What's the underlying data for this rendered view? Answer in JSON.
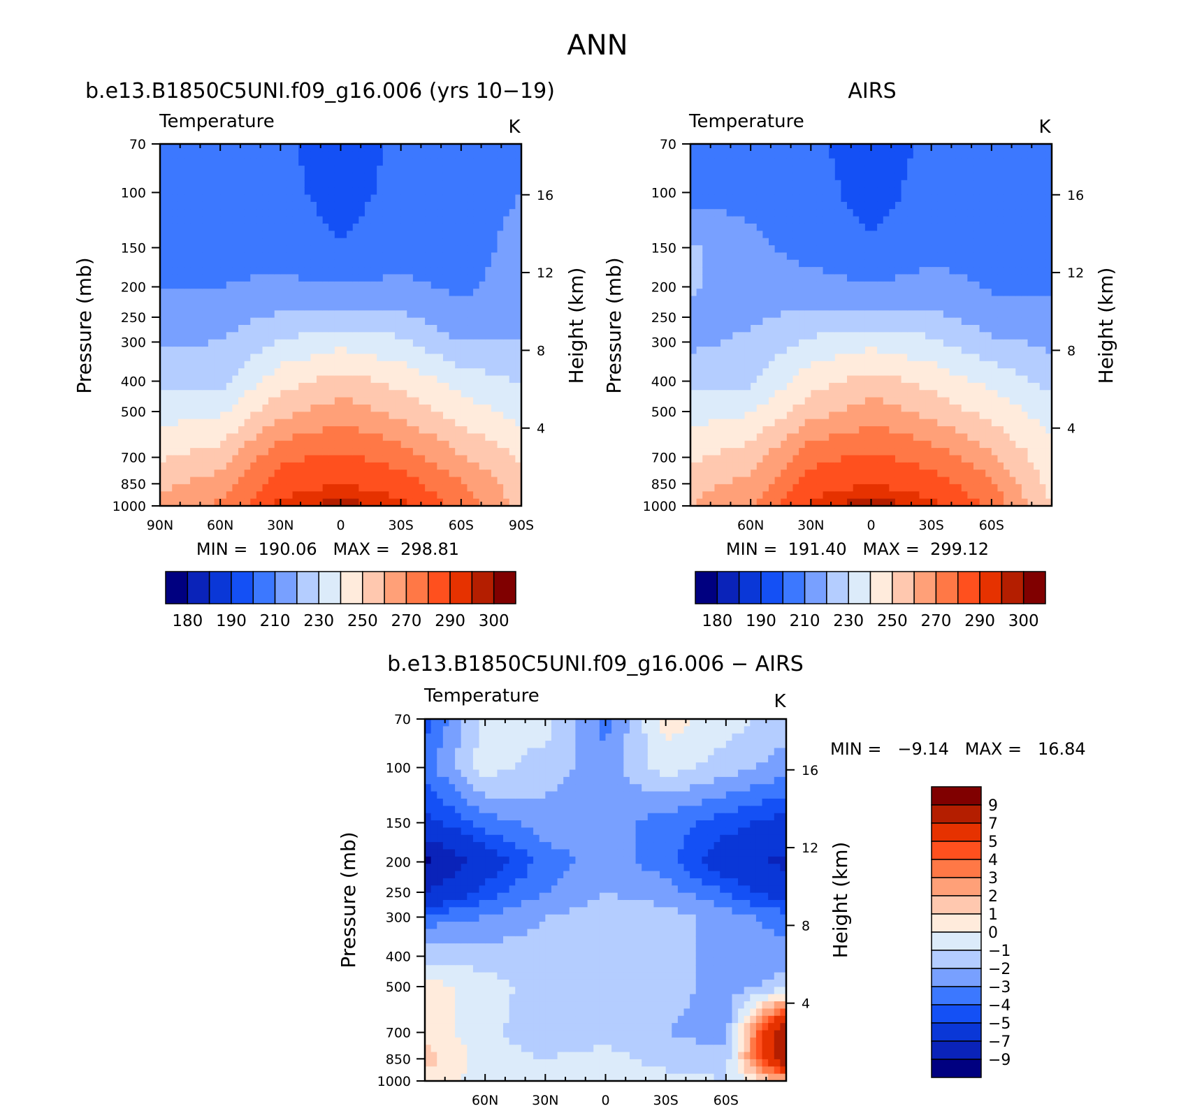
{
  "figure": {
    "title": "ANN"
  },
  "colors": {
    "absolute": [
      "#000080",
      "#0a23b9",
      "#0a37d7",
      "#1450f5",
      "#3c78ff",
      "#78a0ff",
      "#b4cdff",
      "#dcebfa",
      "#ffebdc",
      "#ffc8af",
      "#ffa078",
      "#ff7846",
      "#ff501e",
      "#e63200",
      "#b41e00",
      "#800000"
    ],
    "difference": [
      "#000080",
      "#0a23b9",
      "#0a37d7",
      "#1450f5",
      "#3c78ff",
      "#78a0ff",
      "#b4cdff",
      "#dcebfa",
      "#ffebdc",
      "#ffc8af",
      "#ffa078",
      "#ff7846",
      "#ff501e",
      "#e63200",
      "#b41e00",
      "#800000"
    ]
  },
  "panels": [
    {
      "id": "model",
      "title": "b.e13.B1850C5UNI.f09_g16.006 (yrs 10−19)",
      "variable": "Temperature",
      "units": "K",
      "ylabel": "Pressure (mb)",
      "ylabel_right": "Height (km)",
      "xticks": [
        "90N",
        "60N",
        "30N",
        "0",
        "30S",
        "60S",
        "90S"
      ],
      "stats": "MIN =  190.06   MAX =  298.81"
    },
    {
      "id": "obs",
      "title": "AIRS",
      "variable": "Temperature",
      "units": "K",
      "ylabel": "Pressure (mb)",
      "ylabel_right": "Height (km)",
      "xticks": [
        "",
        "60N",
        "30N",
        "0",
        "30S",
        "60S",
        ""
      ],
      "stats": "MIN =  191.40   MAX =  299.12"
    },
    {
      "id": "diff",
      "title": "b.e13.B1850C5UNI.f09_g16.006 − AIRS",
      "variable": "Temperature",
      "units": "K",
      "ylabel": "Pressure (mb)",
      "ylabel_right": "Height (km)",
      "xticks": [
        "",
        "60N",
        "30N",
        "0",
        "30S",
        "60S",
        ""
      ],
      "stats": "MIN =   −9.14   MAX =   16.84"
    }
  ],
  "pressure_ticks": [
    "70",
    "100",
    "150",
    "200",
    "250",
    "300",
    "400",
    "500",
    "700",
    "850",
    "1000"
  ],
  "height_ticks": [
    "16",
    "12",
    "8",
    "4"
  ],
  "colorbar_absolute": [
    "180",
    "190",
    "210",
    "230",
    "250",
    "270",
    "290",
    "300"
  ],
  "colorbar_difference": [
    "9",
    "7",
    "5",
    "4",
    "3",
    "2",
    "1",
    "0",
    "−1",
    "−2",
    "−3",
    "−4",
    "−5",
    "−7",
    "−9"
  ],
  "chart_data": [
    {
      "type": "heatmap",
      "title": "b.e13.B1850C5UNI.f09_g16.006 (yrs 10−19)",
      "subtitle": "Temperature",
      "units": "K",
      "x": [
        90,
        60,
        30,
        0,
        -30,
        -60,
        -90
      ],
      "xlabel": "",
      "ylabel": "Pressure (mb)",
      "ylim": [
        1000,
        70
      ],
      "y_scale": "log",
      "y_levels": [
        70,
        100,
        150,
        200,
        250,
        300,
        400,
        500,
        700,
        850,
        1000
      ],
      "values": [
        [
          205,
          205,
          203,
          192,
          203,
          205,
          210
        ],
        [
          206,
          206,
          204,
          195,
          204,
          206,
          210
        ],
        [
          207,
          207,
          206,
          201,
          206,
          206,
          213
        ],
        [
          210,
          210,
          212,
          211,
          212,
          208,
          214
        ],
        [
          215,
          215,
          222,
          224,
          222,
          213,
          217
        ],
        [
          219,
          220,
          231,
          237,
          232,
          220,
          220
        ],
        [
          226,
          227,
          246,
          254,
          247,
          236,
          229
        ],
        [
          236,
          238,
          257,
          265,
          257,
          245,
          236
        ],
        [
          249,
          255,
          278,
          282,
          276,
          261,
          249
        ],
        [
          258,
          264,
          286,
          290,
          285,
          271,
          254
        ],
        [
          262,
          272,
          292,
          298,
          293,
          276,
          256
        ]
      ],
      "min": 190.06,
      "max": 298.81,
      "levels": [
        180,
        185,
        190,
        200,
        210,
        220,
        230,
        240,
        250,
        260,
        270,
        280,
        290,
        295,
        300
      ]
    },
    {
      "type": "heatmap",
      "title": "AIRS",
      "subtitle": "Temperature",
      "units": "K",
      "x": [
        90,
        60,
        30,
        0,
        -30,
        -60,
        -90
      ],
      "xlabel": "",
      "ylabel": "Pressure (mb)",
      "ylim": [
        1000,
        70
      ],
      "y_scale": "log",
      "y_levels": [
        70,
        100,
        150,
        200,
        250,
        300,
        400,
        500,
        700,
        850,
        1000
      ],
      "values": [
        [
          205,
          205,
          203,
          193,
          203,
          205,
          210
        ],
        [
          206,
          206,
          204,
          196,
          204,
          206,
          210
        ],
        [
          222,
          213,
          206,
          201,
          206,
          207,
          208
        ],
        [
          222,
          213,
          214,
          211,
          214,
          209,
          208
        ],
        [
          216,
          218,
          223,
          224,
          223,
          214,
          213
        ],
        [
          218,
          222,
          232,
          237,
          232,
          222,
          218
        ],
        [
          226,
          228,
          246,
          254,
          247,
          237,
          226
        ],
        [
          236,
          239,
          256,
          265,
          257,
          246,
          235
        ],
        [
          248,
          255,
          277,
          282,
          276,
          262,
          243
        ],
        [
          256,
          263,
          285,
          290,
          285,
          272,
          246
        ],
        [
          260,
          270,
          292,
          299,
          293,
          277,
          250
        ]
      ],
      "min": 191.4,
      "max": 299.12,
      "levels": [
        180,
        185,
        190,
        200,
        210,
        220,
        230,
        240,
        250,
        260,
        270,
        280,
        290,
        295,
        300
      ]
    },
    {
      "type": "heatmap",
      "title": "b.e13.B1850C5UNI.f09_g16.006 − AIRS",
      "subtitle": "Temperature",
      "units": "K",
      "x": [
        90,
        60,
        30,
        0,
        -30,
        -60,
        -90
      ],
      "xlabel": "",
      "ylabel": "Pressure (mb)",
      "ylim": [
        1000,
        70
      ],
      "y_scale": "log",
      "y_levels": [
        70,
        100,
        150,
        200,
        250,
        300,
        400,
        500,
        700,
        850,
        1000
      ],
      "values": [
        [
          -4.5,
          -0.5,
          -0.5,
          -3.5,
          0.5,
          -0.5,
          -1.5
        ],
        [
          -3.5,
          -0.5,
          -1.5,
          -2.5,
          -0.5,
          -1.5,
          -2.5
        ],
        [
          -5.5,
          -3.5,
          -2.5,
          -2.5,
          -3.5,
          -4.5,
          -5.5
        ],
        [
          -9.5,
          -6.0,
          -3.5,
          -2.5,
          -3.5,
          -6.0,
          -7.5
        ],
        [
          -7.0,
          -4.5,
          -3.0,
          -2.0,
          -2.5,
          -4.0,
          -6.0
        ],
        [
          -3.5,
          -3.0,
          -2.0,
          -1.5,
          -1.5,
          -2.5,
          -3.5
        ],
        [
          -1.5,
          -1.5,
          -1.5,
          -1.5,
          -1.5,
          -2.5,
          -2.5
        ],
        [
          0.5,
          -0.5,
          -1.5,
          -1.5,
          -1.5,
          -2.5,
          -1.5
        ],
        [
          0.5,
          -0.5,
          -2.0,
          -1.5,
          -2.0,
          -2.5,
          9.5
        ],
        [
          1.5,
          -0.5,
          -1.0,
          -0.5,
          -1.5,
          -1.5,
          9.0
        ],
        [
          0.5,
          -0.5,
          -0.5,
          -0.5,
          -0.5,
          -1.0,
          2.0
        ]
      ],
      "min": -9.14,
      "max": 16.84,
      "levels": [
        -9,
        -7,
        -5,
        -4,
        -3,
        -2,
        -1,
        0,
        1,
        2,
        3,
        4,
        5,
        7,
        9
      ]
    }
  ]
}
